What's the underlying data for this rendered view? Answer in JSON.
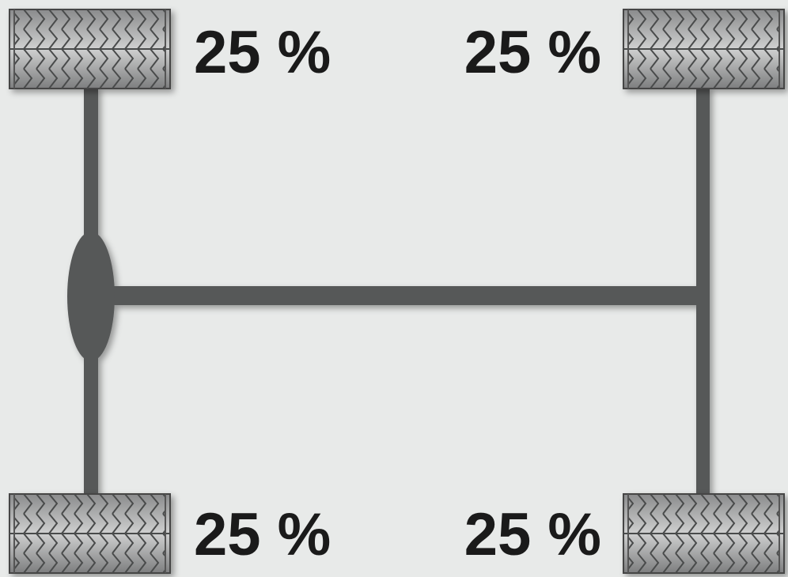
{
  "wheels": [
    {
      "label": "25 %"
    },
    {
      "label": "25 %"
    },
    {
      "label": "25 %"
    },
    {
      "label": "25 %"
    }
  ]
}
